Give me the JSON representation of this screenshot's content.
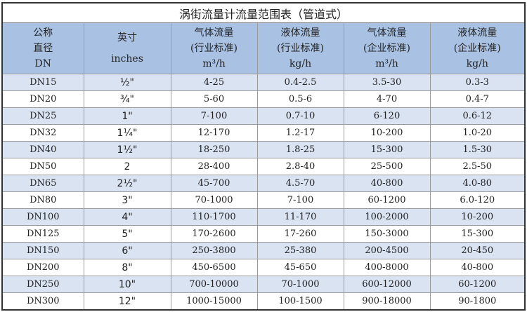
{
  "title": "涡街流量计流量范围表（管道式）",
  "headers": [
    {
      "l1": "公称",
      "l2": "直径",
      "l3": "DN"
    },
    {
      "l1": "英寸",
      "l2": "",
      "l3": "inches"
    },
    {
      "l1": "气体流量",
      "l2": "(行业标准)",
      "l3": "m³/h"
    },
    {
      "l1": "液体流量",
      "l2": "(行业标准)",
      "l3": "kg/h"
    },
    {
      "l1": "气体流量",
      "l2": "(企业标准)",
      "l3": "m³/h"
    },
    {
      "l1": "液体流量",
      "l2": "(企业标准)",
      "l3": "kg/h"
    }
  ],
  "rows": [
    [
      "DN15",
      "½\"",
      "4-25",
      "0.4-2.5",
      "3.5-30",
      "0.3-3"
    ],
    [
      "DN20",
      "¾\"",
      "5-60",
      "0.5-6",
      "4-70",
      "0.4-7"
    ],
    [
      "DN25",
      "1\"",
      "7-100",
      "0.7-10",
      "6-120",
      "0.6-12"
    ],
    [
      "DN32",
      "1¼\"",
      "12-170",
      "1.2-17",
      "10-200",
      "1.0-20"
    ],
    [
      "DN40",
      "1½\"",
      "18-250",
      "1.8-25",
      "15-300",
      "1.5-30"
    ],
    [
      "DN50",
      "2",
      "28-400",
      "2.8-40",
      "25-500",
      "2.5-50"
    ],
    [
      "DN65",
      "2½\"",
      "45-700",
      "4.5-70",
      "40-800",
      "4.0-80"
    ],
    [
      "DN80",
      "3\"",
      "70-1000",
      "7-100",
      "60-1200",
      "6.0-120"
    ],
    [
      "DN100",
      "4\"",
      "110-1700",
      "11-170",
      "100-2000",
      "10-200"
    ],
    [
      "DN125",
      "5\"",
      "170-2600",
      "17-260",
      "150-3000",
      "15-300"
    ],
    [
      "DN150",
      "6\"",
      "250-3800",
      "25-380",
      "200-4500",
      "20-450"
    ],
    [
      "DN200",
      "8\"",
      "450-6500",
      "45-650",
      "400-8000",
      "40-800"
    ],
    [
      "DN250",
      "10\"",
      "700-10000",
      "70-1000",
      "600-12000",
      "60-1200"
    ],
    [
      "DN300",
      "12\"",
      "1000-15000",
      "100-1500",
      "900-18000",
      "90-1800"
    ]
  ],
  "colors": {
    "header_bg": "#a9c2e4",
    "stripe_bg": "#d9e3f2"
  }
}
